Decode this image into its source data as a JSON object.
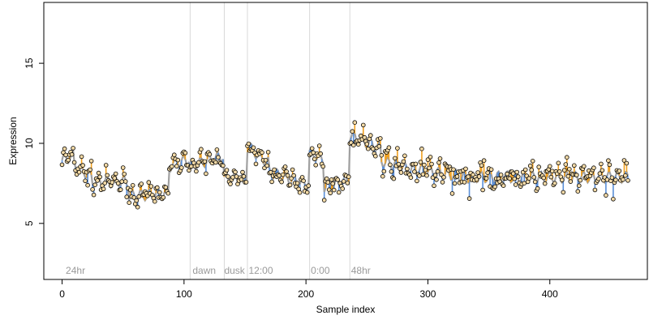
{
  "chart_data": {
    "type": "scatter",
    "title": "",
    "xlabel": "Sample index",
    "ylabel": "Expression",
    "xlim": [
      -15,
      480
    ],
    "ylim": [
      1.5,
      18.8
    ],
    "x_ticks": [
      0,
      100,
      200,
      300,
      400
    ],
    "y_ticks": [
      5,
      10,
      15
    ],
    "grid": false,
    "legend": "none",
    "colors": {
      "above_fit": "#f0a020",
      "below_fit": "#5a8fd8",
      "fit_line": "#a0a0a0",
      "point_fill": "#f2d9a6",
      "point_stroke": "#000000",
      "phase_line": "#d8d8d8",
      "phase_text": "#9a9a9a"
    },
    "phase_boundaries": [
      105,
      133,
      152,
      203,
      236
    ],
    "phase_labels": [
      {
        "x": 3,
        "label": "24hr"
      },
      {
        "x": 107,
        "label": "dawn"
      },
      {
        "x": 133,
        "label": "dusk"
      },
      {
        "x": 153,
        "label": "12:00"
      },
      {
        "x": 204,
        "label": "0:00"
      },
      {
        "x": 237,
        "label": "48hr"
      }
    ],
    "segments": [
      {
        "x0": 0,
        "x1": 10,
        "level": 9.1,
        "noise": 0.45,
        "trend": 0.3
      },
      {
        "x0": 10,
        "x1": 25,
        "level": 8.3,
        "noise": 0.5,
        "trend": -0.8
      },
      {
        "x0": 25,
        "x1": 55,
        "level": 7.6,
        "noise": 0.4,
        "trend": 0.0
      },
      {
        "x0": 55,
        "x1": 88,
        "level": 6.8,
        "noise": 0.35,
        "trend": 0.2
      },
      {
        "x0": 88,
        "x1": 105,
        "level": 8.8,
        "noise": 0.35,
        "trend": 0.4
      },
      {
        "x0": 105,
        "x1": 133,
        "level": 8.9,
        "noise": 0.35,
        "trend": 0.6
      },
      {
        "x0": 133,
        "x1": 152,
        "level": 7.8,
        "noise": 0.25,
        "trend": 0.0
      },
      {
        "x0": 152,
        "x1": 170,
        "level": 9.3,
        "noise": 0.4,
        "trend": -1.0
      },
      {
        "x0": 170,
        "x1": 203,
        "level": 7.8,
        "noise": 0.35,
        "trend": -0.8
      },
      {
        "x0": 203,
        "x1": 215,
        "level": 9.2,
        "noise": 0.3,
        "trend": -0.4
      },
      {
        "x0": 215,
        "x1": 236,
        "level": 7.5,
        "noise": 0.4,
        "trend": 0.4
      },
      {
        "x0": 236,
        "x1": 262,
        "level": 10.1,
        "noise": 0.55,
        "trend": -0.8
      },
      {
        "x0": 262,
        "x1": 290,
        "level": 8.6,
        "noise": 0.6,
        "trend": -0.6
      },
      {
        "x0": 290,
        "x1": 340,
        "level": 8.1,
        "noise": 0.7,
        "trend": -0.6
      },
      {
        "x0": 340,
        "x1": 465,
        "level": 7.9,
        "noise": 0.65,
        "trend": 0.0
      }
    ]
  }
}
